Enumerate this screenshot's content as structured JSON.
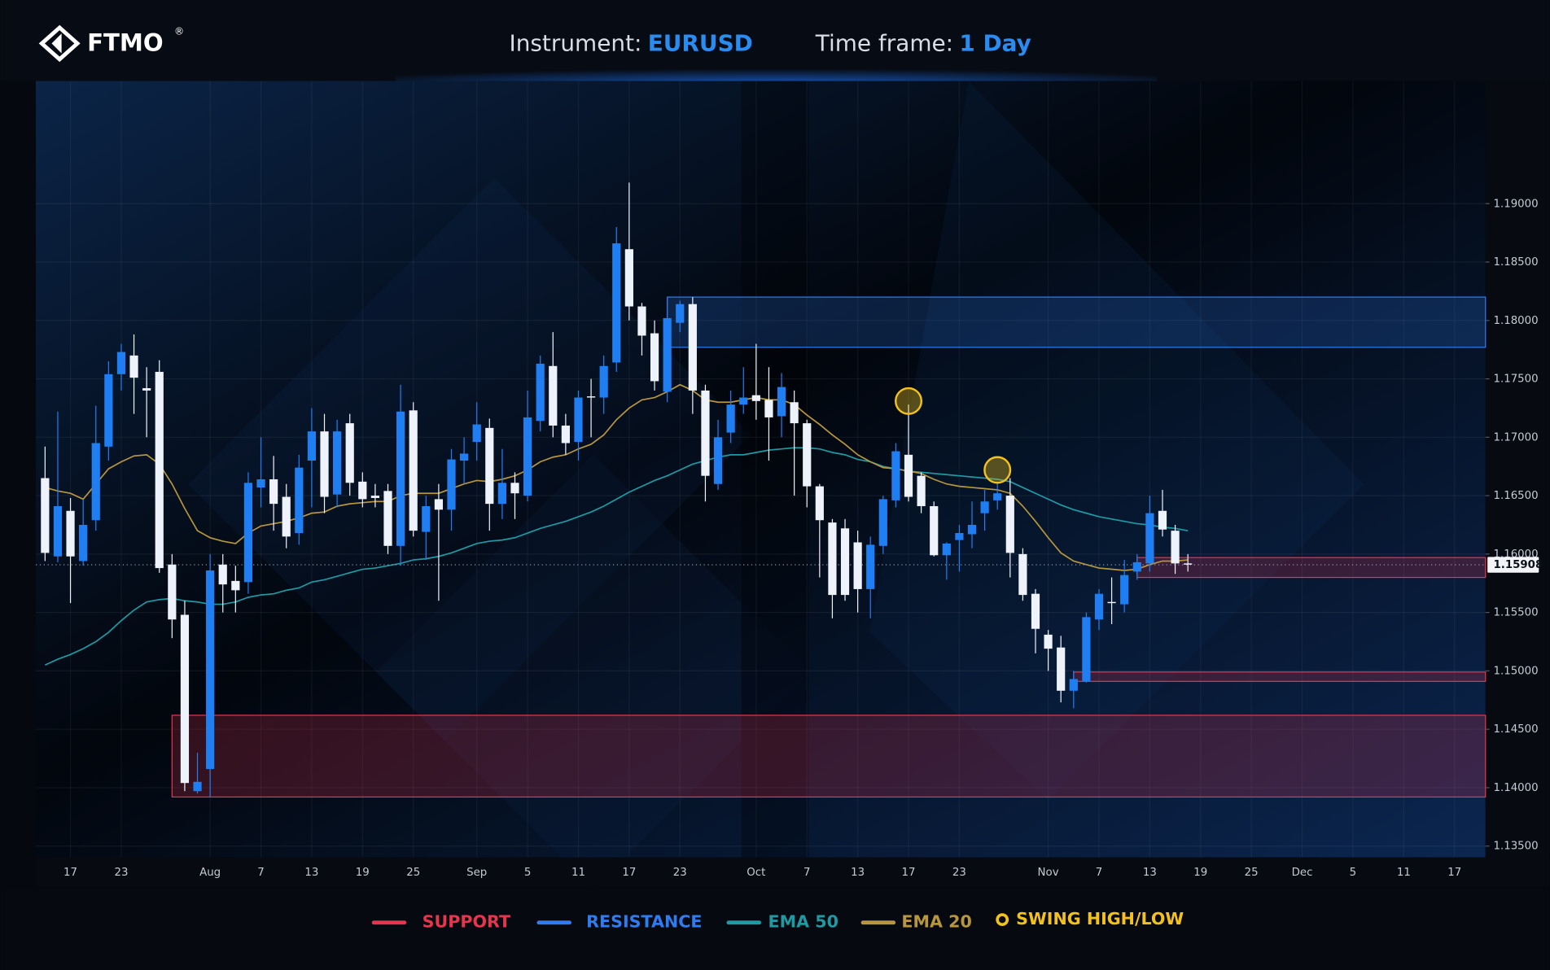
{
  "header": {
    "brand": "FTMO",
    "brand_mark": "®",
    "instrument_label": "Instrument:",
    "instrument": "EURUSD",
    "timeframe_label": "Time frame:",
    "timeframe": "1 Day"
  },
  "chart_data": {
    "type": "candlestick",
    "categories": [
      null,
      null,
      "17",
      null,
      null,
      null,
      "23",
      null,
      null,
      null,
      null,
      null,
      null,
      "Aug",
      null,
      null,
      null,
      "7",
      null,
      null,
      null,
      "13",
      null,
      null,
      null,
      "19",
      null,
      null,
      null,
      "25",
      null,
      null,
      null,
      null,
      "Sep",
      null,
      null,
      null,
      "5",
      null,
      null,
      null,
      "11",
      null,
      null,
      null,
      "17",
      null,
      null,
      null,
      "23",
      null,
      null,
      null,
      null,
      null,
      "Oct",
      null,
      null,
      null,
      "7",
      null,
      null,
      null,
      "13",
      null,
      null,
      null,
      "17",
      null,
      null,
      null,
      "23",
      null,
      null,
      null,
      null,
      null,
      null,
      "Nov",
      null,
      null,
      null,
      "7",
      null,
      null,
      null,
      "13",
      null,
      null,
      null,
      "19",
      null,
      null,
      null,
      "25",
      null,
      null,
      null,
      "Dec",
      null,
      null,
      null,
      "5",
      null,
      null,
      null,
      "11",
      null,
      null,
      null,
      "17",
      null,
      null
    ],
    "open": [
      1.1665,
      1.1598,
      1.1637,
      1.1594,
      1.1629,
      1.1692,
      1.1754,
      1.177,
      1.1742,
      1.1756,
      1.1591,
      1.1548,
      1.1397,
      1.1416,
      1.1591,
      1.1577,
      1.1576,
      1.1657,
      1.1664,
      1.1649,
      1.1618,
      1.168,
      1.1705,
      1.1651,
      1.1712,
      1.1662,
      1.165,
      1.1654,
      1.1607,
      1.1723,
      1.1619,
      1.1647,
      1.1638,
      1.168,
      1.1696,
      1.1708,
      1.1643,
      1.1661,
      1.165,
      1.1714,
      1.1761,
      1.171,
      1.1696,
      1.1735,
      1.1734,
      1.1764,
      1.1861,
      1.1812,
      1.1789,
      1.1739,
      1.1798,
      1.1814,
      1.174,
      1.166,
      1.1704,
      1.1728,
      1.1736,
      1.1732,
      1.1718,
      1.173,
      1.1712,
      1.1658,
      1.1627,
      1.1622,
      1.161,
      1.157,
      1.1607,
      1.1646,
      1.1685,
      1.1667,
      1.1641,
      1.1599,
      1.1612,
      1.1617,
      1.1635,
      1.1646,
      1.165,
      1.16,
      1.1566,
      1.1531,
      1.152,
      1.1483,
      1.1491,
      1.1544,
      1.1559,
      1.1557,
      1.1585,
      1.1592,
      1.1637,
      1.162,
      1.1592,
      null,
      null,
      null,
      null,
      null,
      null,
      null,
      null,
      null,
      null,
      null,
      null,
      null,
      null,
      null,
      null,
      null,
      null,
      null,
      null,
      null,
      null,
      null
    ],
    "high": [
      1.1692,
      1.1722,
      1.1648,
      1.1647,
      1.1727,
      1.1765,
      1.178,
      1.1788,
      1.176,
      1.1766,
      1.16,
      1.156,
      1.143,
      1.16,
      1.16,
      1.159,
      1.167,
      1.17,
      1.1684,
      1.166,
      1.1685,
      1.1725,
      1.172,
      1.1715,
      1.172,
      1.167,
      1.166,
      1.166,
      1.1745,
      1.173,
      1.165,
      1.166,
      1.169,
      1.17,
      1.173,
      1.1716,
      1.169,
      1.167,
      1.174,
      1.177,
      1.179,
      1.172,
      1.174,
      1.175,
      1.177,
      1.188,
      1.1918,
      1.1815,
      1.18,
      1.182,
      1.1817,
      1.182,
      1.1745,
      1.1715,
      1.174,
      1.176,
      1.178,
      1.176,
      1.1755,
      1.174,
      1.1715,
      1.166,
      1.163,
      1.163,
      1.162,
      1.1615,
      1.165,
      1.1695,
      1.1728,
      1.167,
      1.1645,
      1.161,
      1.1625,
      1.1645,
      1.1655,
      1.1662,
      1.1665,
      1.1605,
      1.157,
      1.1535,
      1.153,
      1.15,
      1.155,
      1.157,
      1.158,
      1.1595,
      1.16,
      1.165,
      1.1655,
      1.1625,
      1.16,
      null,
      null,
      null,
      null,
      null,
      null,
      null,
      null,
      null,
      null,
      null,
      null,
      null,
      null,
      null,
      null,
      null,
      null,
      null,
      null,
      null,
      null,
      null
    ],
    "low": [
      1.1594,
      1.1593,
      1.1558,
      1.159,
      1.162,
      1.168,
      1.174,
      1.172,
      1.17,
      1.1584,
      1.1528,
      1.1397,
      1.1395,
      1.1392,
      1.155,
      1.155,
      1.1566,
      1.164,
      1.162,
      1.1605,
      1.1608,
      1.164,
      1.1635,
      1.164,
      1.165,
      1.164,
      1.164,
      1.16,
      1.159,
      1.1615,
      1.1595,
      1.156,
      1.162,
      1.166,
      1.168,
      1.162,
      1.163,
      1.163,
      1.1645,
      1.1705,
      1.17,
      1.1685,
      1.168,
      1.17,
      1.172,
      1.1756,
      1.18,
      1.177,
      1.174,
      1.173,
      1.179,
      1.172,
      1.1645,
      1.1655,
      1.1695,
      1.172,
      1.1715,
      1.168,
      1.17,
      1.165,
      1.164,
      1.158,
      1.1545,
      1.156,
      1.155,
      1.1545,
      1.16,
      1.164,
      1.1645,
      1.1635,
      1.1598,
      1.1578,
      1.1585,
      1.1605,
      1.162,
      1.1638,
      1.158,
      1.156,
      1.1515,
      1.15,
      1.1473,
      1.1468,
      1.149,
      1.1535,
      1.154,
      1.155,
      1.1578,
      1.1585,
      1.1615,
      1.1583,
      1.1585,
      null,
      null,
      null,
      null,
      null,
      null,
      null,
      null,
      null,
      null,
      null,
      null,
      null,
      null,
      null,
      null,
      null,
      null,
      null,
      null,
      null,
      null,
      null
    ],
    "close": [
      1.1601,
      1.1641,
      1.1598,
      1.1625,
      1.1695,
      1.1754,
      1.1773,
      1.1751,
      1.174,
      1.1588,
      1.1544,
      1.1404,
      1.1405,
      1.1586,
      1.1574,
      1.1569,
      1.1661,
      1.1664,
      1.1643,
      1.1615,
      1.1674,
      1.1705,
      1.1649,
      1.1705,
      1.1661,
      1.1647,
      1.1648,
      1.1607,
      1.1722,
      1.162,
      1.1641,
      1.1638,
      1.1681,
      1.1686,
      1.1711,
      1.1643,
      1.1661,
      1.1652,
      1.1717,
      1.1763,
      1.171,
      1.1695,
      1.1734,
      1.1734,
      1.1761,
      1.1866,
      1.1812,
      1.1787,
      1.1748,
      1.1802,
      1.1814,
      1.174,
      1.1667,
      1.17,
      1.1728,
      1.1734,
      1.1731,
      1.1717,
      1.1743,
      1.1712,
      1.1658,
      1.1629,
      1.1565,
      1.1565,
      1.157,
      1.1608,
      1.1647,
      1.1688,
      1.1649,
      1.1641,
      1.1599,
      1.1609,
      1.1618,
      1.1625,
      1.1645,
      1.1652,
      1.1601,
      1.1565,
      1.1536,
      1.1519,
      1.1483,
      1.1493,
      1.1546,
      1.1566,
      1.1559,
      1.1582,
      1.1593,
      1.1635,
      1.1621,
      1.1592,
      1.1591,
      null,
      null,
      null,
      null,
      null,
      null,
      null,
      null,
      null,
      null,
      null,
      null,
      null,
      null,
      null,
      null,
      null,
      null,
      null,
      null,
      null,
      null,
      null
    ],
    "up_color": "#1f7ff2",
    "down_color": "#eef2fb",
    "series": [
      {
        "name": "EMA 50",
        "color": "#1d9aa3",
        "values": [
          1.1505,
          1.151,
          1.1514,
          1.1519,
          1.1525,
          1.1533,
          1.1543,
          1.1552,
          1.1559,
          1.1561,
          1.1562,
          1.156,
          1.1559,
          1.1557,
          1.1557,
          1.1559,
          1.1563,
          1.1565,
          1.1566,
          1.1569,
          1.1571,
          1.1576,
          1.1578,
          1.1581,
          1.1584,
          1.1587,
          1.1588,
          1.159,
          1.1592,
          1.1595,
          1.1596,
          1.1598,
          1.1601,
          1.1605,
          1.1609,
          1.1611,
          1.1612,
          1.1614,
          1.1618,
          1.1622,
          1.1625,
          1.1628,
          1.1632,
          1.1636,
          1.1641,
          1.1647,
          1.1653,
          1.1658,
          1.1663,
          1.1667,
          1.1672,
          1.1677,
          1.168,
          1.1683,
          1.1685,
          1.1685,
          1.1687,
          1.1689,
          1.169,
          1.1691,
          1.1691,
          1.169,
          1.1687,
          1.1685,
          1.1681,
          1.1679,
          1.1675,
          1.1673,
          1.1671,
          1.167,
          1.1669,
          1.1668,
          1.1667,
          1.1666,
          1.1665,
          1.1664,
          1.1662,
          1.1657,
          1.1652,
          1.1647,
          1.1642,
          1.1638,
          1.1635,
          1.1632,
          1.163,
          1.1628,
          1.1626,
          1.1625,
          1.1623,
          1.1622,
          1.162,
          null,
          null,
          null,
          null,
          null,
          null,
          null,
          null,
          null,
          null,
          null,
          null,
          null,
          null,
          null,
          null,
          null,
          null,
          null,
          null,
          null,
          null,
          null
        ]
      },
      {
        "name": "EMA 20",
        "color": "#b8963e",
        "values": [
          1.1657,
          1.1654,
          1.1652,
          1.1647,
          1.166,
          1.1673,
          1.1679,
          1.1684,
          1.1685,
          1.1677,
          1.166,
          1.1639,
          1.162,
          1.1614,
          1.1611,
          1.1609,
          1.1618,
          1.1624,
          1.1626,
          1.1628,
          1.1631,
          1.1635,
          1.1636,
          1.1641,
          1.1643,
          1.1644,
          1.1645,
          1.1645,
          1.165,
          1.1652,
          1.1652,
          1.1652,
          1.1656,
          1.166,
          1.1663,
          1.1662,
          1.1664,
          1.1667,
          1.1672,
          1.1679,
          1.1683,
          1.1685,
          1.169,
          1.1694,
          1.1702,
          1.1715,
          1.1725,
          1.1732,
          1.1734,
          1.1739,
          1.1745,
          1.174,
          1.1732,
          1.173,
          1.173,
          1.1732,
          1.1734,
          1.1732,
          1.1732,
          1.1728,
          1.1719,
          1.1711,
          1.1702,
          1.1694,
          1.1685,
          1.1679,
          1.1674,
          1.1673,
          1.1671,
          1.1669,
          1.1664,
          1.166,
          1.1658,
          1.1657,
          1.1656,
          1.1655,
          1.1652,
          1.1641,
          1.1628,
          1.1614,
          1.1601,
          1.1594,
          1.1591,
          1.1588,
          1.1587,
          1.1586,
          1.1587,
          1.1591,
          1.1594,
          1.1594,
          1.1595,
          null,
          null,
          null,
          null,
          null,
          null,
          null,
          null,
          null,
          null,
          null,
          null,
          null,
          null,
          null,
          null,
          null,
          null,
          null,
          null,
          null,
          null,
          null
        ]
      }
    ],
    "zones": [
      {
        "name": "SUPPORT",
        "color": "#e8344e",
        "ranges": [
          {
            "x_start": 86,
            "low": 1.158,
            "high": 1.1597
          },
          {
            "x_start": 81,
            "low": 1.1491,
            "high": 1.1499
          },
          {
            "x_start": 10,
            "low": 1.1392,
            "high": 1.1462
          }
        ]
      },
      {
        "name": "RESISTANCE",
        "color": "#2f7cf0",
        "ranges": [
          {
            "x_start": 49,
            "low": 1.1777,
            "high": 1.182
          }
        ]
      }
    ],
    "swings": {
      "name": "SWING HIGH/LOW",
      "color": "#f2c21b",
      "points": [
        {
          "x": 68,
          "value": 1.1731
        },
        {
          "x": 75,
          "value": 1.1672
        }
      ]
    },
    "last_price": 1.15908,
    "ylim": [
      1.1342,
      1.2005
    ],
    "yticks": [
      {
        "value": 1.135,
        "label": "1.13500"
      },
      {
        "value": 1.14,
        "label": "1.14000"
      },
      {
        "value": 1.145,
        "label": "1.14500"
      },
      {
        "value": 1.15,
        "label": "1.15000"
      },
      {
        "value": 1.155,
        "label": "1.15500"
      },
      {
        "value": 1.16,
        "label": "1.16000"
      },
      {
        "value": 1.165,
        "label": "1.16500"
      },
      {
        "value": 1.17,
        "label": "1.17000"
      },
      {
        "value": 1.175,
        "label": "1.17500"
      },
      {
        "value": 1.18,
        "label": "1.18000"
      },
      {
        "value": 1.185,
        "label": "1.18500"
      },
      {
        "value": 1.19,
        "label": "1.19000"
      }
    ],
    "grid": true
  }
}
